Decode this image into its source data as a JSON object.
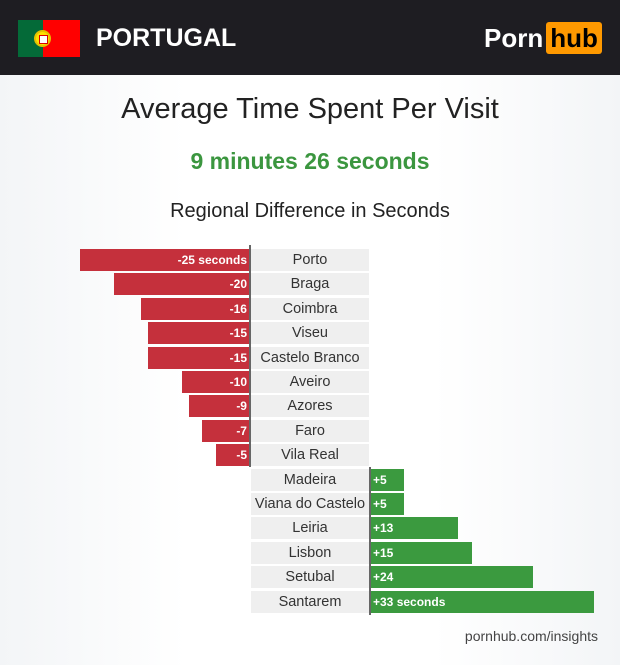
{
  "header": {
    "country": "PORTUGAL",
    "flag_icon": "portugal-flag",
    "logo": {
      "part1": "Porn",
      "part2": "hub"
    }
  },
  "title": "Average Time Spent Per Visit",
  "subtitle": "9 minutes 26 seconds",
  "colors": {
    "negative": "#c5303c",
    "positive": "#3b9a3f",
    "accent": "#ff9900"
  },
  "chart_data": {
    "type": "bar",
    "orientation": "horizontal-diverging",
    "title": "Regional Difference in Seconds",
    "categories": [
      "Porto",
      "Braga",
      "Coimbra",
      "Viseu",
      "Castelo Branco",
      "Aveiro",
      "Azores",
      "Faro",
      "Vila Real",
      "Madeira",
      "Viana do Castelo",
      "Leiria",
      "Lisbon",
      "Setubal",
      "Santarem"
    ],
    "values": [
      -25,
      -20,
      -16,
      -15,
      -15,
      -10,
      -9,
      -7,
      -5,
      5,
      5,
      13,
      15,
      24,
      33
    ],
    "data_labels": [
      "-25 seconds",
      "-20",
      "-16",
      "-15",
      "-15",
      "-10",
      "-9",
      "-7",
      "-5",
      "+5",
      "+5",
      "+13",
      "+15",
      "+24",
      "+33 seconds"
    ]
  },
  "source": "pornhub.com/insights"
}
